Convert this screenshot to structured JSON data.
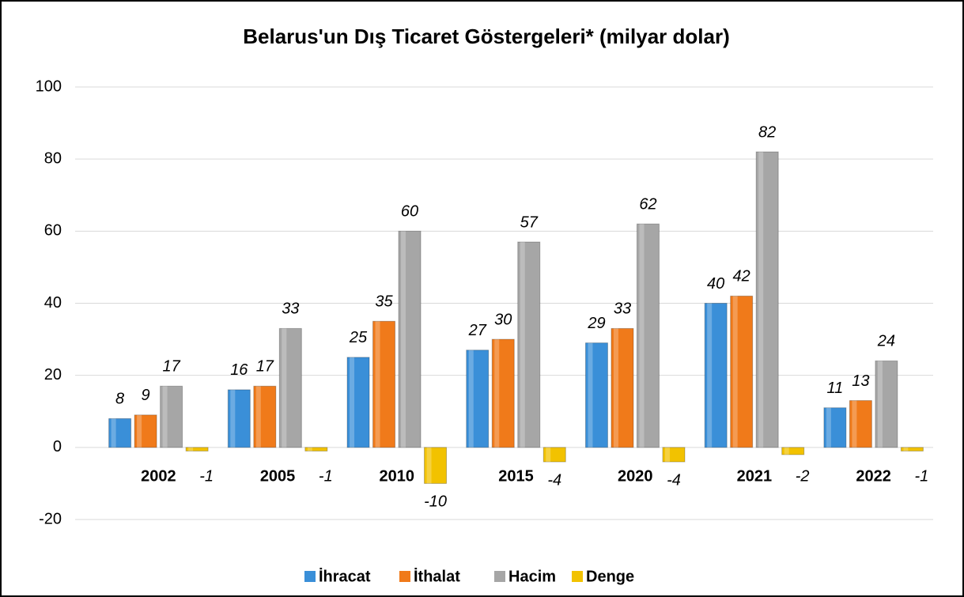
{
  "chart_data": {
    "type": "bar",
    "title": "Belarus'un Dış Ticaret Göstergeleri*  (milyar dolar)",
    "categories": [
      "2002",
      "2005",
      "2010",
      "2015",
      "2020",
      "2021",
      "2022"
    ],
    "series": [
      {
        "name": "İhracat",
        "color": "#3a8fd8",
        "values": [
          8,
          16,
          25,
          27,
          29,
          40,
          11
        ]
      },
      {
        "name": "İthalat",
        "color": "#f07a1a",
        "values": [
          9,
          17,
          35,
          30,
          33,
          42,
          13
        ]
      },
      {
        "name": "Hacim",
        "color": "#a6a6a6",
        "values": [
          17,
          33,
          60,
          57,
          62,
          82,
          24
        ]
      },
      {
        "name": "Denge",
        "color": "#f2c200",
        "values": [
          -1,
          -1,
          -10,
          -4,
          -4,
          -2,
          -1
        ]
      }
    ],
    "ylim": [
      -20,
      100
    ],
    "yticks": [
      -20,
      0,
      20,
      40,
      60,
      80,
      100
    ],
    "grid": true,
    "legend": "bottom"
  }
}
